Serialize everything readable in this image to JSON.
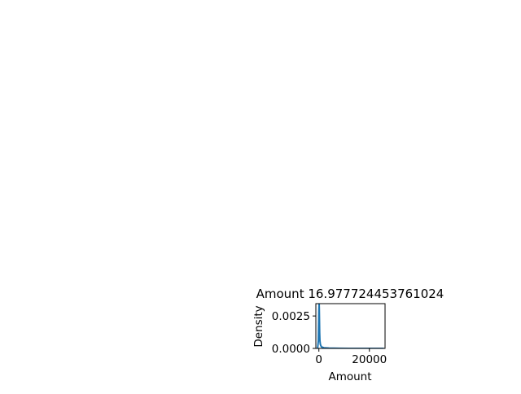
{
  "chart_data": {
    "type": "area",
    "title": "Amount 16.977724453761024",
    "xlabel": "Amount",
    "ylabel": "Density",
    "xlim": [
      -1200,
      26200
    ],
    "ylim": [
      0,
      0.00345
    ],
    "x_ticks": [
      {
        "value": 0,
        "label": "0"
      },
      {
        "value": 20000,
        "label": "20000"
      }
    ],
    "y_ticks": [
      {
        "value": 0,
        "label": "0.0000"
      },
      {
        "value": 0.0025,
        "label": "0.0025"
      }
    ],
    "grid": false,
    "series": [
      {
        "color": "#1f77b4",
        "x": [
          -500,
          -200,
          0,
          100,
          150,
          220,
          300,
          400,
          600,
          1000,
          2000,
          4000,
          8000,
          12000,
          16000,
          20000,
          24000,
          25700
        ],
        "y": [
          0,
          0.0006,
          0.0029,
          0.00345,
          0.0031,
          0.0022,
          0.0012,
          0.0006,
          0.0003,
          0.00012,
          5e-05,
          2e-05,
          8e-06,
          4e-06,
          2e-06,
          1e-06,
          5e-07,
          0
        ]
      }
    ]
  }
}
